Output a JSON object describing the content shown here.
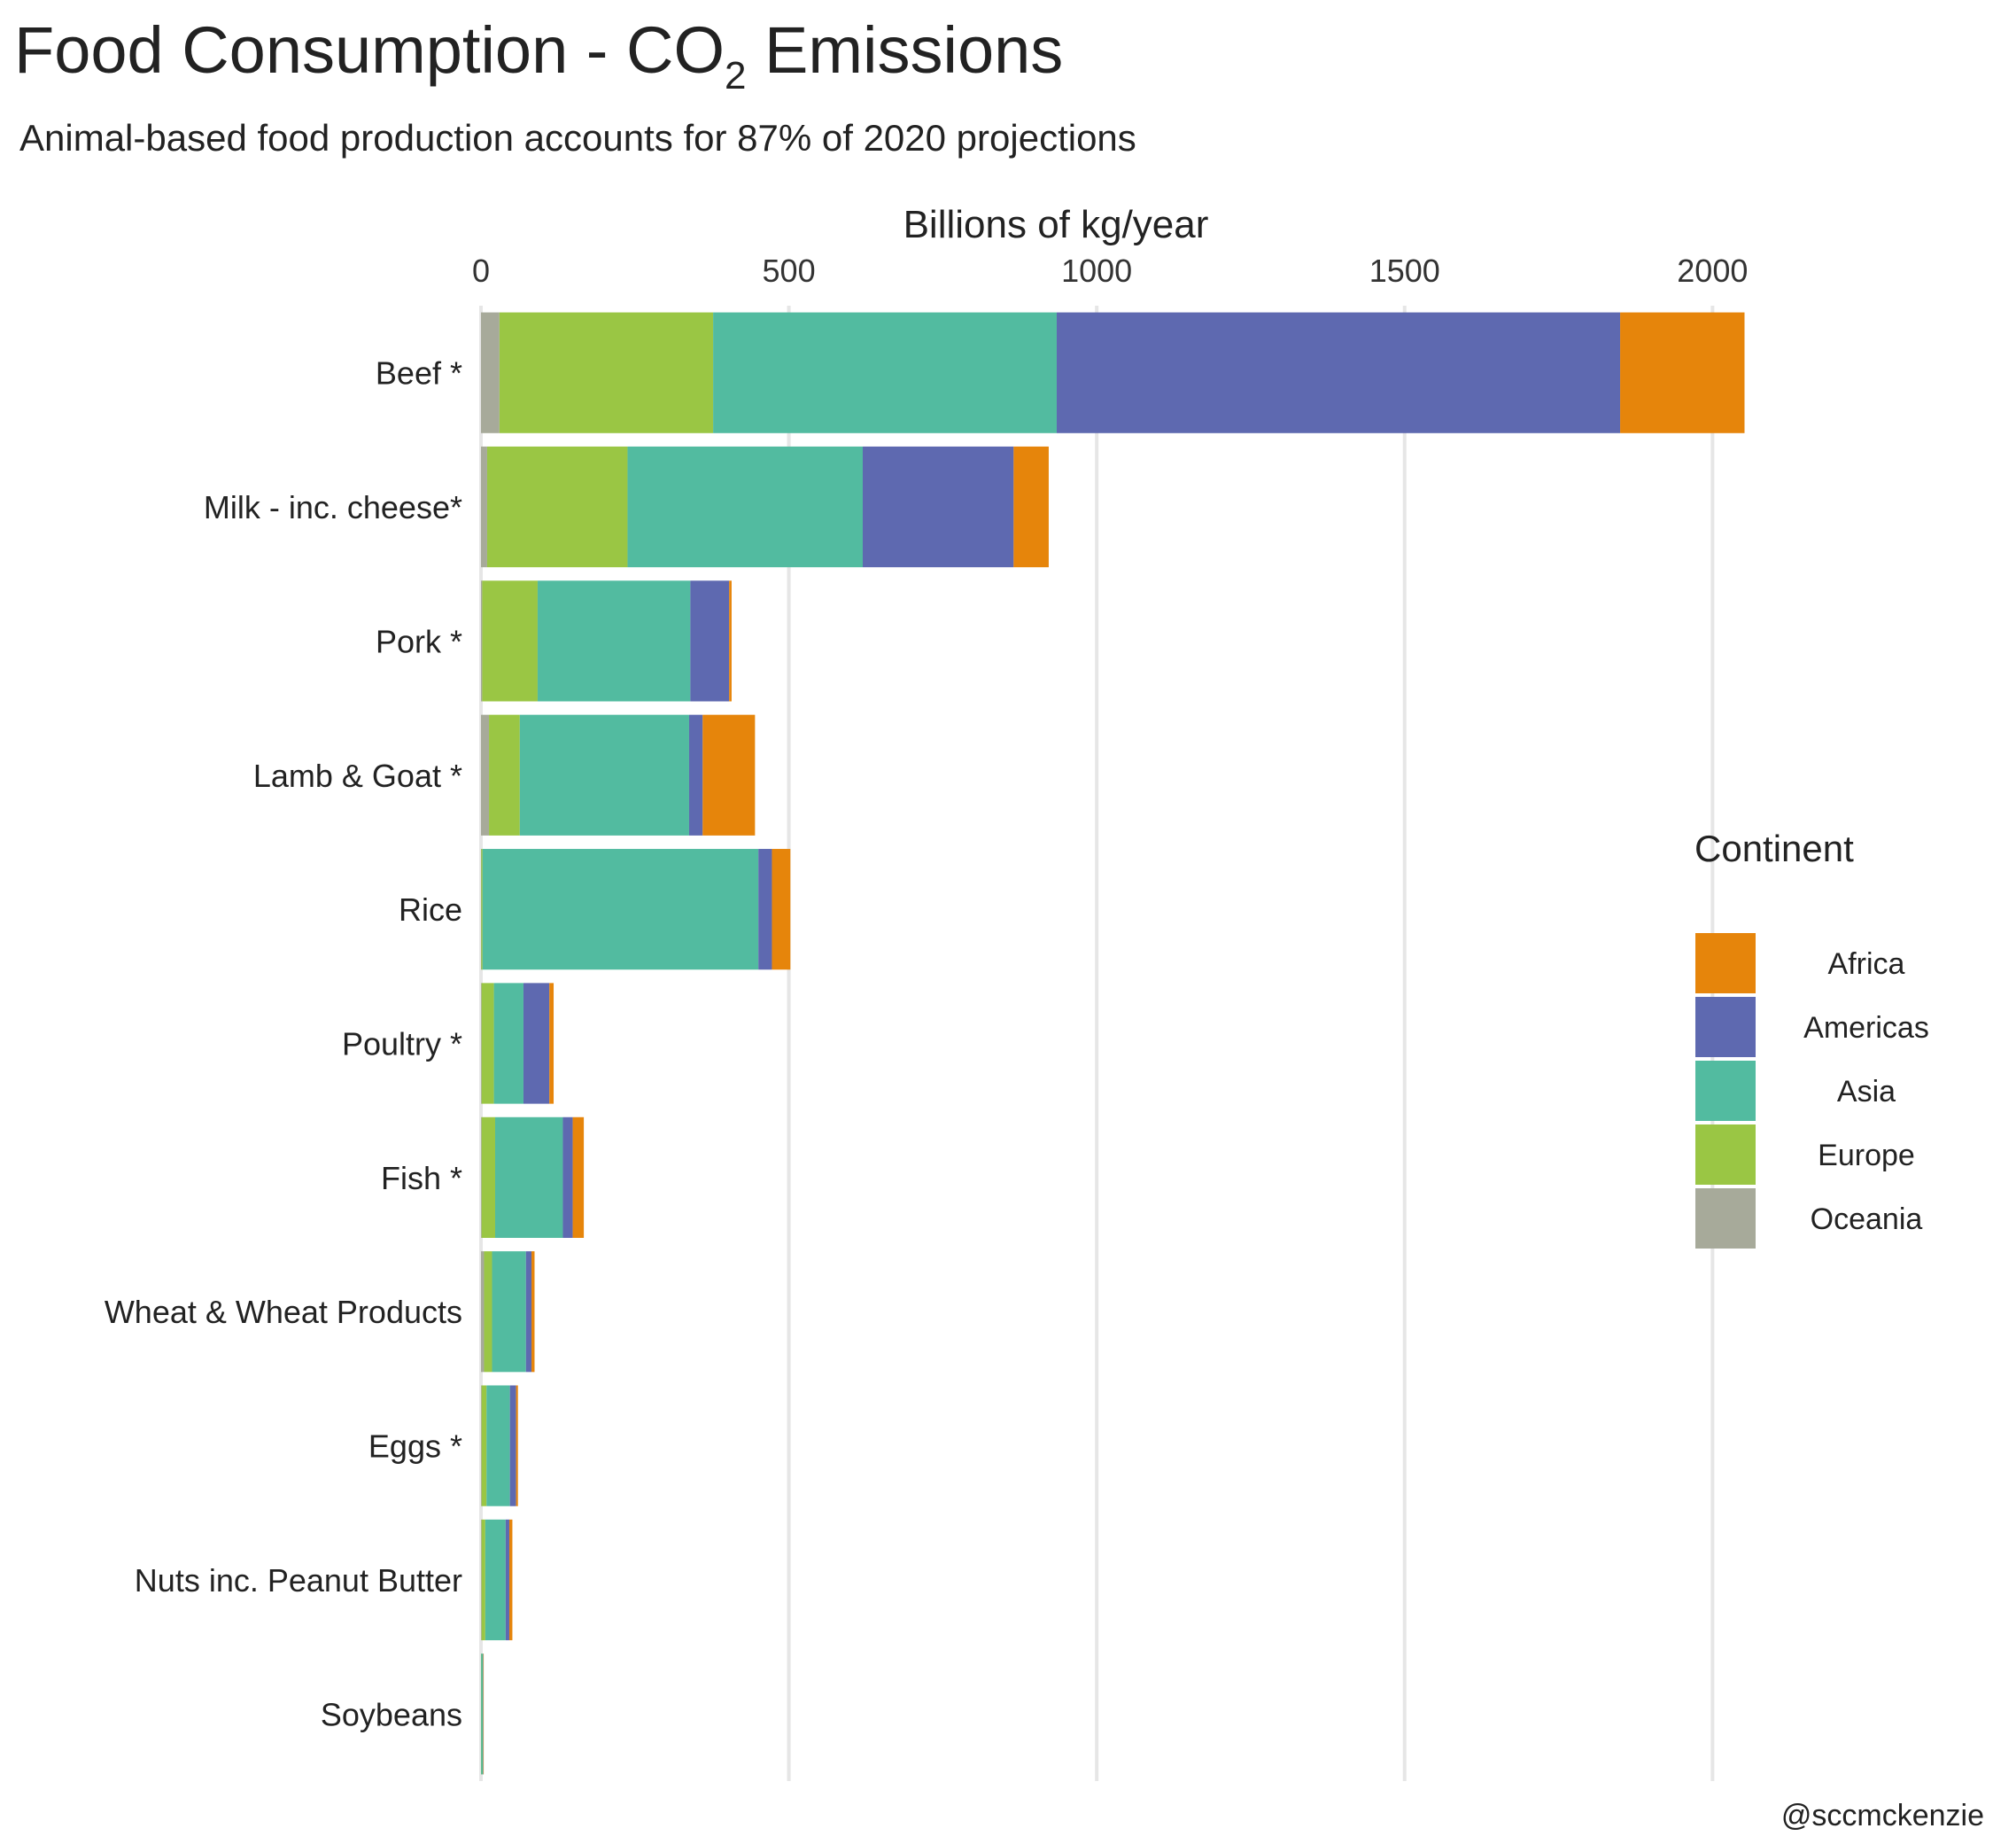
{
  "title": {
    "prefix": "Food Consumption - CO",
    "subscript": "2",
    "suffix": " Emissions"
  },
  "subtitle": "Animal-based food production accounts for 87% of 2020 projections",
  "caption": "@sccmckenzie",
  "chart_data": {
    "type": "bar",
    "orientation": "horizontal",
    "stacked": true,
    "xlabel": "Billions of kg/year",
    "x_axis_position": "top",
    "xlim": [
      0,
      2070
    ],
    "x_ticks": [
      0,
      500,
      1000,
      1500,
      2000
    ],
    "x_tick_labels": [
      "0",
      "500",
      "1000",
      "1500",
      "2000"
    ],
    "grid": "vertical major gridlines",
    "legend": {
      "title": "Continent",
      "placement": "right"
    },
    "categories": [
      "Beef *",
      "Milk - inc. cheese*",
      "Pork *",
      "Lamb & Goat *",
      "Rice",
      "Poultry *",
      "Fish *",
      "Wheat & Wheat Products",
      "Eggs *",
      "Nuts inc. Peanut Butter",
      "Soybeans"
    ],
    "stack_order": [
      "Oceania",
      "Europe",
      "Asia",
      "Americas",
      "Africa"
    ],
    "series": [
      {
        "name": "Africa",
        "color": "#E6850B",
        "values": [
          202,
          57,
          4,
          85,
          30,
          7,
          18,
          5,
          3,
          5,
          0.1
        ]
      },
      {
        "name": "Americas",
        "color": "#5E69B0",
        "values": [
          915,
          245,
          63,
          22,
          22,
          42,
          16,
          9,
          10,
          6,
          0.3
        ]
      },
      {
        "name": "Asia",
        "color": "#52BBA0",
        "values": [
          558,
          382,
          248,
          275,
          448,
          48,
          110,
          55,
          38,
          33,
          3
        ]
      },
      {
        "name": "Europe",
        "color": "#9AC644",
        "values": [
          347,
          228,
          90,
          50,
          2,
          20,
          22,
          13,
          8,
          6,
          0.3
        ]
      },
      {
        "name": "Oceania",
        "color": "#A7AA9A",
        "values": [
          30,
          10,
          2,
          13,
          0.5,
          1,
          1,
          5,
          1,
          1,
          0.1
        ]
      }
    ]
  }
}
